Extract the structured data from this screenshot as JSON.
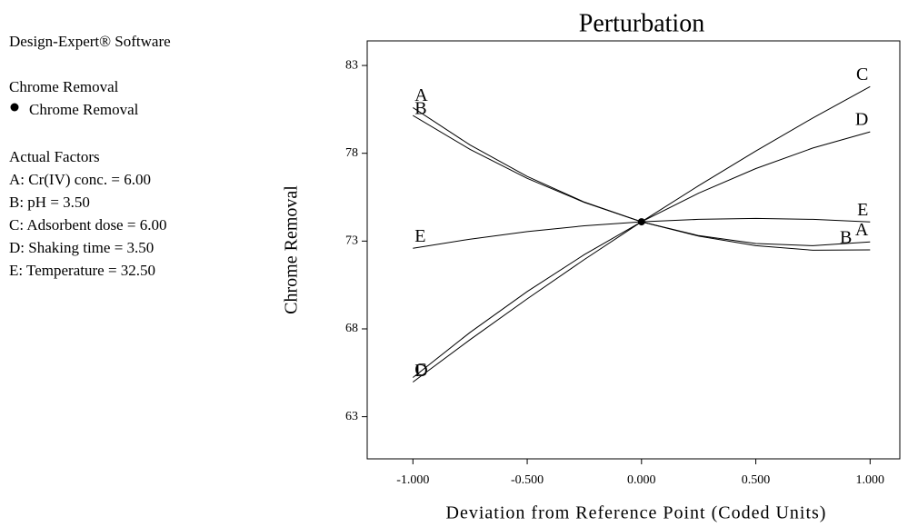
{
  "chart_data": {
    "type": "line",
    "title": "Perturbation",
    "xlabel": "Deviation from Reference Point (Coded Units)",
    "ylabel": "Chrome Removal",
    "side_panel": {
      "software": "Design-Expert® Software",
      "response": "Chrome Removal",
      "legend_entry": "Chrome Removal",
      "factors_heading": "Actual Factors",
      "factors": [
        "A: Cr(IV) conc. = 6.00",
        "B: pH = 3.50",
        "C: Adsorbent dose = 6.00",
        "D: Shaking time = 3.50",
        "E: Temperature = 32.50"
      ]
    },
    "x": [
      -1,
      -0.75,
      -0.5,
      -0.25,
      0,
      0.25,
      0.5,
      0.75,
      1
    ],
    "series": [
      {
        "name": "A",
        "color": "#000000",
        "values": [
          80.6,
          78.47,
          76.68,
          75.22,
          74.1,
          73.31,
          72.86,
          72.74,
          72.95
        ]
      },
      {
        "name": "B",
        "color": "#000000",
        "values": [
          80.15,
          78.22,
          76.57,
          75.2,
          74.1,
          73.28,
          72.74,
          72.48,
          72.5
        ]
      },
      {
        "name": "C",
        "color": "#000000",
        "values": [
          64.97,
          67.39,
          69.71,
          71.95,
          74.1,
          76.16,
          78.13,
          80.01,
          81.8
        ]
      },
      {
        "name": "D",
        "color": "#000000",
        "values": [
          65.23,
          67.8,
          70.13,
          72.23,
          74.1,
          75.73,
          77.13,
          78.3,
          79.22
        ]
      },
      {
        "name": "E",
        "color": "#000000",
        "values": [
          72.59,
          73.11,
          73.54,
          73.87,
          74.1,
          74.24,
          74.29,
          74.24,
          74.09
        ]
      }
    ],
    "reference_point": {
      "x": 0,
      "y": 74.1
    },
    "xlim": [
      -1.2,
      1.13
    ],
    "ylim": [
      60.6,
      84.4
    ],
    "xticks": [
      {
        "value": -1,
        "label": "-1.000"
      },
      {
        "value": -0.5,
        "label": "-0.500"
      },
      {
        "value": 0,
        "label": "0.000"
      },
      {
        "value": 0.5,
        "label": "0.500"
      },
      {
        "value": 1,
        "label": "1.000"
      }
    ],
    "yticks": [
      63,
      68,
      73,
      78,
      83
    ],
    "grid": false
  }
}
